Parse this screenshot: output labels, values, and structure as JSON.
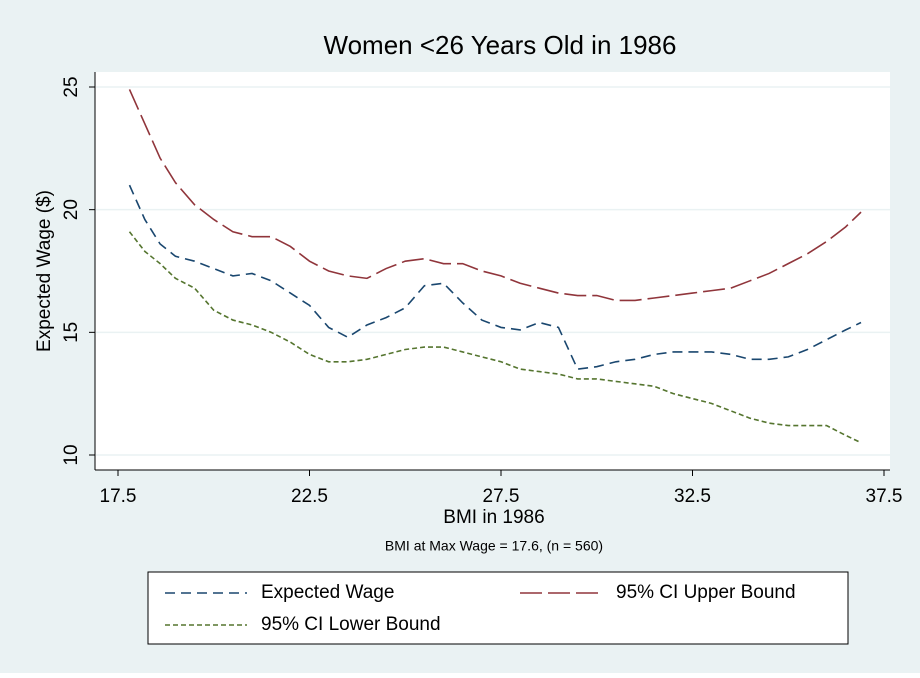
{
  "chart_data": {
    "type": "line",
    "title": "Women <26 Years Old in 1986",
    "x_label": "BMI in 1986",
    "y_label": "Expected Wage ($)",
    "note": "BMI at Max Wage = 17.6, (n = 560)",
    "x": [
      17.8,
      18.2,
      18.6,
      19,
      19.5,
      20,
      20.5,
      21,
      21.5,
      22,
      22.5,
      23,
      23.5,
      24,
      24.5,
      25,
      25.5,
      26,
      26.5,
      27,
      27.5,
      28,
      28.5,
      29,
      29.5,
      30,
      30.5,
      31,
      31.5,
      32,
      32.5,
      33,
      33.5,
      34,
      34.5,
      35,
      35.5,
      36,
      36.5,
      36.9
    ],
    "series": [
      {
        "name": "Expected Wage",
        "color": "#1a476f",
        "dash": "10 6",
        "values": [
          21,
          19.6,
          18.6,
          18.1,
          17.9,
          17.6,
          17.3,
          17.4,
          17.1,
          16.6,
          16.1,
          15.2,
          14.8,
          15.3,
          15.6,
          16.0,
          16.9,
          17.0,
          16.2,
          15.5,
          15.2,
          15.1,
          15.4,
          15.2,
          13.5,
          13.6,
          13.8,
          13.9,
          14.1,
          14.2,
          14.2,
          14.2,
          14.1,
          13.9,
          13.9,
          14.0,
          14.3,
          14.7,
          15.1,
          15.4
        ]
      },
      {
        "name": "95% CI Upper Bound",
        "color": "#90353b",
        "dash": "22 6",
        "values": [
          24.9,
          23.5,
          22.1,
          21.1,
          20.2,
          19.6,
          19.1,
          18.9,
          18.9,
          18.5,
          17.9,
          17.5,
          17.3,
          17.2,
          17.6,
          17.9,
          18.0,
          17.8,
          17.8,
          17.5,
          17.3,
          17.0,
          16.8,
          16.6,
          16.5,
          16.5,
          16.3,
          16.3,
          16.4,
          16.5,
          16.6,
          16.7,
          16.8,
          17.1,
          17.4,
          17.8,
          18.2,
          18.7,
          19.3,
          19.9
        ]
      },
      {
        "name": "95% CI Lower Bound",
        "color": "#55752f",
        "dash": "5 3",
        "values": [
          19.1,
          18.3,
          17.8,
          17.2,
          16.8,
          15.9,
          15.5,
          15.3,
          15.0,
          14.6,
          14.1,
          13.8,
          13.8,
          13.9,
          14.1,
          14.3,
          14.4,
          14.4,
          14.2,
          14.0,
          13.8,
          13.5,
          13.4,
          13.3,
          13.1,
          13.1,
          13.0,
          12.9,
          12.8,
          12.5,
          12.3,
          12.1,
          11.8,
          11.5,
          11.3,
          11.2,
          11.2,
          11.2,
          10.8,
          10.5
        ]
      }
    ],
    "xlim": [
      17.5,
      37.5
    ],
    "xticks": [
      17.5,
      22.5,
      27.5,
      32.5,
      37.5
    ],
    "ylim": [
      10,
      25
    ],
    "yticks": [
      10,
      15,
      20,
      25
    ],
    "grid": true,
    "legend": "bottom"
  }
}
